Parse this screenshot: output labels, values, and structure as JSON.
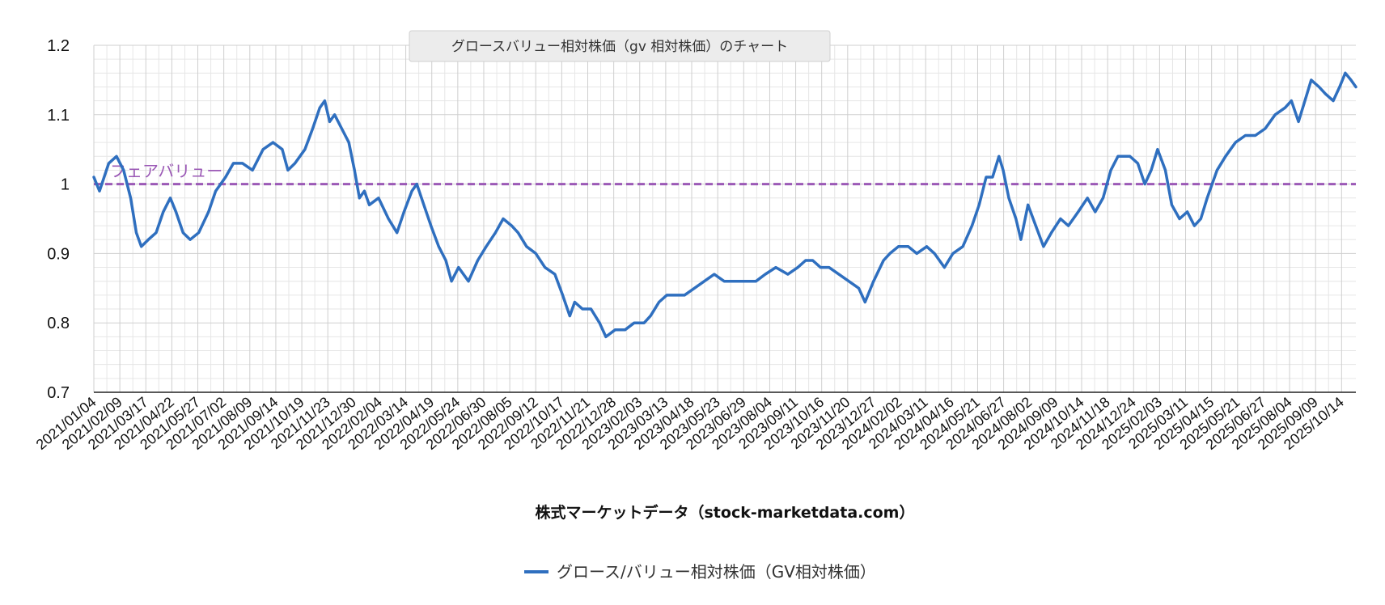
{
  "chart_data": {
    "type": "line",
    "title": "グロースバリュー相対株価（gv 相対株価）のチャート",
    "xlabel": "株式マーケットデータ（stock-marketdata.com）",
    "ylabel": "",
    "ylim": [
      0.7,
      1.2
    ],
    "y_ticks": [
      "0.7",
      "0.8",
      "0.9",
      "1",
      "1.1",
      "1.2"
    ],
    "grid": true,
    "legend_position": "bottom",
    "x_range": [
      "2021-01-04",
      "2025-11-21"
    ],
    "x_tick_labels": [
      "2021/01/04",
      "2021/02/09",
      "2021/03/17",
      "2021/04/22",
      "2021/05/27",
      "2021/07/02",
      "2021/08/09",
      "2021/09/14",
      "2021/10/19",
      "2021/11/23",
      "2021/12/30",
      "2022/02/04",
      "2022/03/14",
      "2022/04/19",
      "2022/05/24",
      "2022/06/30",
      "2022/08/05",
      "2022/09/12",
      "2022/10/17",
      "2022/11/21",
      "2022/12/28",
      "2023/02/03",
      "2023/03/13",
      "2023/04/18",
      "2023/05/23",
      "2023/06/29",
      "2023/08/04",
      "2023/09/11",
      "2023/10/16",
      "2023/11/20",
      "2023/12/27",
      "2024/02/02",
      "2024/03/11",
      "2024/04/16",
      "2024/05/21",
      "2024/06/27",
      "2024/08/02",
      "2024/09/09",
      "2024/10/14",
      "2024/11/18",
      "2024/12/24",
      "2025/02/03",
      "2025/03/11",
      "2025/04/15",
      "2025/05/21",
      "2025/06/27",
      "2025/08/04",
      "2025/09/09",
      "2025/10/14"
    ],
    "series": [
      {
        "name": "グロース/バリュー相対株価（GV相対株価）",
        "color": "#2f6fbf",
        "points": [
          [
            "2021-01-04",
            1.01
          ],
          [
            "2021-01-12",
            0.99
          ],
          [
            "2021-01-25",
            1.03
          ],
          [
            "2021-02-05",
            1.04
          ],
          [
            "2021-02-15",
            1.02
          ],
          [
            "2021-02-25",
            0.98
          ],
          [
            "2021-03-05",
            0.93
          ],
          [
            "2021-03-12",
            0.91
          ],
          [
            "2021-03-22",
            0.92
          ],
          [
            "2021-04-02",
            0.93
          ],
          [
            "2021-04-12",
            0.96
          ],
          [
            "2021-04-22",
            0.98
          ],
          [
            "2021-04-30",
            0.96
          ],
          [
            "2021-05-10",
            0.93
          ],
          [
            "2021-05-20",
            0.92
          ],
          [
            "2021-06-01",
            0.93
          ],
          [
            "2021-06-15",
            0.96
          ],
          [
            "2021-06-25",
            0.99
          ],
          [
            "2021-07-09",
            1.01
          ],
          [
            "2021-07-20",
            1.03
          ],
          [
            "2021-08-02",
            1.03
          ],
          [
            "2021-08-16",
            1.02
          ],
          [
            "2021-08-31",
            1.05
          ],
          [
            "2021-09-14",
            1.06
          ],
          [
            "2021-09-27",
            1.05
          ],
          [
            "2021-10-05",
            1.02
          ],
          [
            "2021-10-15",
            1.03
          ],
          [
            "2021-10-29",
            1.05
          ],
          [
            "2021-11-09",
            1.08
          ],
          [
            "2021-11-19",
            1.11
          ],
          [
            "2021-11-26",
            1.12
          ],
          [
            "2021-12-03",
            1.09
          ],
          [
            "2021-12-10",
            1.1
          ],
          [
            "2021-12-20",
            1.08
          ],
          [
            "2021-12-30",
            1.06
          ],
          [
            "2022-01-07",
            1.02
          ],
          [
            "2022-01-14",
            0.98
          ],
          [
            "2022-01-21",
            0.99
          ],
          [
            "2022-01-28",
            0.97
          ],
          [
            "2022-02-10",
            0.98
          ],
          [
            "2022-02-24",
            0.95
          ],
          [
            "2022-03-08",
            0.93
          ],
          [
            "2022-03-18",
            0.96
          ],
          [
            "2022-03-29",
            0.99
          ],
          [
            "2022-04-05",
            1.0
          ],
          [
            "2022-04-15",
            0.97
          ],
          [
            "2022-04-25",
            0.94
          ],
          [
            "2022-05-06",
            0.91
          ],
          [
            "2022-05-16",
            0.89
          ],
          [
            "2022-05-24",
            0.86
          ],
          [
            "2022-06-03",
            0.88
          ],
          [
            "2022-06-17",
            0.86
          ],
          [
            "2022-06-30",
            0.89
          ],
          [
            "2022-07-12",
            0.91
          ],
          [
            "2022-07-25",
            0.93
          ],
          [
            "2022-08-05",
            0.95
          ],
          [
            "2022-08-17",
            0.94
          ],
          [
            "2022-08-26",
            0.93
          ],
          [
            "2022-09-07",
            0.91
          ],
          [
            "2022-09-20",
            0.9
          ],
          [
            "2022-10-03",
            0.88
          ],
          [
            "2022-10-17",
            0.87
          ],
          [
            "2022-10-28",
            0.84
          ],
          [
            "2022-11-07",
            0.81
          ],
          [
            "2022-11-14",
            0.83
          ],
          [
            "2022-11-25",
            0.82
          ],
          [
            "2022-12-07",
            0.82
          ],
          [
            "2022-12-19",
            0.8
          ],
          [
            "2022-12-28",
            0.78
          ],
          [
            "2023-01-10",
            0.79
          ],
          [
            "2023-01-24",
            0.79
          ],
          [
            "2023-02-06",
            0.8
          ],
          [
            "2023-02-20",
            0.8
          ],
          [
            "2023-03-01",
            0.81
          ],
          [
            "2023-03-13",
            0.83
          ],
          [
            "2023-03-24",
            0.84
          ],
          [
            "2023-04-07",
            0.84
          ],
          [
            "2023-04-18",
            0.84
          ],
          [
            "2023-05-02",
            0.85
          ],
          [
            "2023-05-16",
            0.86
          ],
          [
            "2023-05-30",
            0.87
          ],
          [
            "2023-06-13",
            0.86
          ],
          [
            "2023-06-29",
            0.86
          ],
          [
            "2023-07-14",
            0.86
          ],
          [
            "2023-07-28",
            0.86
          ],
          [
            "2023-08-10",
            0.87
          ],
          [
            "2023-08-25",
            0.88
          ],
          [
            "2023-09-11",
            0.87
          ],
          [
            "2023-09-25",
            0.88
          ],
          [
            "2023-10-06",
            0.89
          ],
          [
            "2023-10-16",
            0.89
          ],
          [
            "2023-10-27",
            0.88
          ],
          [
            "2023-11-08",
            0.88
          ],
          [
            "2023-11-22",
            0.87
          ],
          [
            "2023-12-06",
            0.86
          ],
          [
            "2023-12-20",
            0.85
          ],
          [
            "2023-12-29",
            0.83
          ],
          [
            "2024-01-10",
            0.86
          ],
          [
            "2024-01-24",
            0.89
          ],
          [
            "2024-02-02",
            0.9
          ],
          [
            "2024-02-14",
            0.91
          ],
          [
            "2024-02-28",
            0.91
          ],
          [
            "2024-03-11",
            0.9
          ],
          [
            "2024-03-25",
            0.91
          ],
          [
            "2024-04-05",
            0.9
          ],
          [
            "2024-04-19",
            0.88
          ],
          [
            "2024-05-01",
            0.9
          ],
          [
            "2024-05-15",
            0.91
          ],
          [
            "2024-05-28",
            0.94
          ],
          [
            "2024-06-07",
            0.97
          ],
          [
            "2024-06-17",
            1.01
          ],
          [
            "2024-06-26",
            1.01
          ],
          [
            "2024-07-05",
            1.04
          ],
          [
            "2024-07-11",
            1.02
          ],
          [
            "2024-07-19",
            0.98
          ],
          [
            "2024-07-29",
            0.95
          ],
          [
            "2024-08-05",
            0.92
          ],
          [
            "2024-08-15",
            0.97
          ],
          [
            "2024-08-26",
            0.94
          ],
          [
            "2024-09-06",
            0.91
          ],
          [
            "2024-09-17",
            0.93
          ],
          [
            "2024-09-30",
            0.95
          ],
          [
            "2024-10-11",
            0.94
          ],
          [
            "2024-10-25",
            0.96
          ],
          [
            "2024-11-07",
            0.98
          ],
          [
            "2024-11-18",
            0.96
          ],
          [
            "2024-11-29",
            0.98
          ],
          [
            "2024-12-10",
            1.02
          ],
          [
            "2024-12-20",
            1.04
          ],
          [
            "2025-01-06",
            1.04
          ],
          [
            "2025-01-17",
            1.03
          ],
          [
            "2025-01-27",
            1.0
          ],
          [
            "2025-02-05",
            1.02
          ],
          [
            "2025-02-14",
            1.05
          ],
          [
            "2025-02-25",
            1.02
          ],
          [
            "2025-03-06",
            0.97
          ],
          [
            "2025-03-17",
            0.95
          ],
          [
            "2025-03-28",
            0.96
          ],
          [
            "2025-04-07",
            0.94
          ],
          [
            "2025-04-16",
            0.95
          ],
          [
            "2025-04-25",
            0.98
          ],
          [
            "2025-05-09",
            1.02
          ],
          [
            "2025-05-21",
            1.04
          ],
          [
            "2025-06-04",
            1.06
          ],
          [
            "2025-06-18",
            1.07
          ],
          [
            "2025-07-02",
            1.07
          ],
          [
            "2025-07-16",
            1.08
          ],
          [
            "2025-07-30",
            1.1
          ],
          [
            "2025-08-13",
            1.11
          ],
          [
            "2025-08-22",
            1.12
          ],
          [
            "2025-09-01",
            1.09
          ],
          [
            "2025-09-10",
            1.12
          ],
          [
            "2025-09-19",
            1.15
          ],
          [
            "2025-09-30",
            1.14
          ],
          [
            "2025-10-09",
            1.13
          ],
          [
            "2025-10-20",
            1.12
          ],
          [
            "2025-10-29",
            1.14
          ],
          [
            "2025-11-06",
            1.16
          ],
          [
            "2025-11-14",
            1.15
          ],
          [
            "2025-11-21",
            1.14
          ]
        ]
      }
    ],
    "reference_line": {
      "label": "フェアバリュー",
      "value": 1.0,
      "color": "#9b59b6",
      "style": "dashed"
    }
  }
}
